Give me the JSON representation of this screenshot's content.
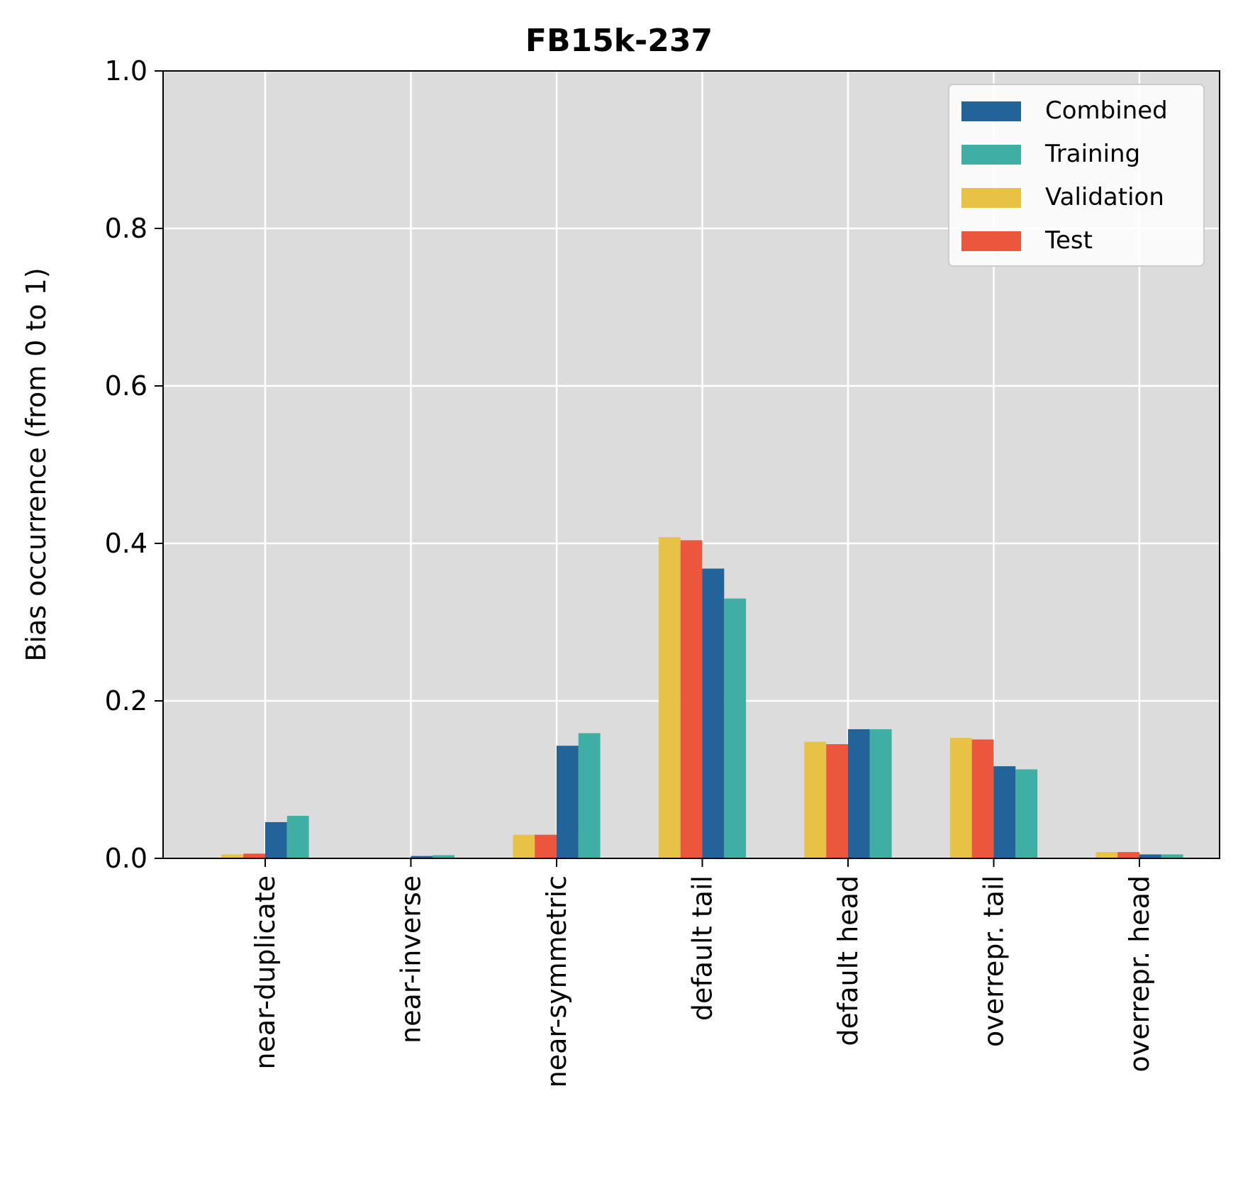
{
  "chart_data": {
    "type": "bar",
    "title": "FB15k-237",
    "xlabel": "",
    "ylabel": "Bias occurrence (from 0 to 1)",
    "ylim": [
      0,
      1
    ],
    "yticks": [
      "0.0",
      "0.2",
      "0.4",
      "0.6",
      "0.8",
      "1.0"
    ],
    "grid": true,
    "legend_position": "top-right",
    "categories": [
      "near-duplicate",
      "near-inverse",
      "near-symmetric",
      "default tail",
      "default head",
      "overrepr. tail",
      "overrepr. head"
    ],
    "series": [
      {
        "name": "Validation",
        "color": "#E8C245",
        "values": [
          0.005,
          0.0,
          0.03,
          0.408,
          0.148,
          0.153,
          0.008
        ]
      },
      {
        "name": "Test",
        "color": "#EC563C",
        "values": [
          0.006,
          0.0,
          0.03,
          0.404,
          0.145,
          0.151,
          0.008
        ]
      },
      {
        "name": "Combined",
        "color": "#22649A",
        "values": [
          0.046,
          0.003,
          0.143,
          0.368,
          0.164,
          0.117,
          0.005
        ]
      },
      {
        "name": "Training",
        "color": "#3FAFA4",
        "values": [
          0.054,
          0.004,
          0.159,
          0.33,
          0.164,
          0.113,
          0.005
        ]
      }
    ],
    "legend_order": [
      "Combined",
      "Training",
      "Validation",
      "Test"
    ],
    "colors": {
      "plot_background": "#DCDCDC",
      "grid": "#FFFFFF"
    }
  }
}
